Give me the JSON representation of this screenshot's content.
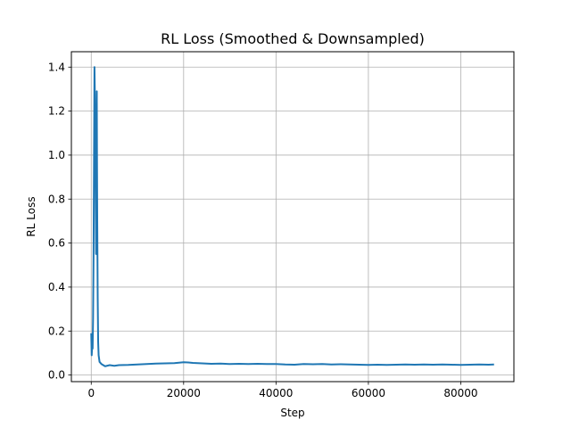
{
  "chart_data": {
    "type": "line",
    "title": "RL Loss (Smoothed & Downsampled)",
    "xlabel": "Step",
    "ylabel": "RL Loss",
    "xlim": [
      -4300,
      91500
    ],
    "ylim": [
      -0.03,
      1.47
    ],
    "xticks": [
      0,
      20000,
      40000,
      60000,
      80000
    ],
    "yticks": [
      0.0,
      0.2,
      0.4,
      0.6,
      0.8,
      1.0,
      1.2,
      1.4
    ],
    "xtick_labels": [
      "0",
      "20000",
      "40000",
      "60000",
      "80000"
    ],
    "ytick_labels": [
      "0.0",
      "0.2",
      "0.4",
      "0.6",
      "0.8",
      "1.0",
      "1.2",
      "1.4"
    ],
    "grid": true,
    "colors": {
      "line": "#1f77b4",
      "grid": "#b0b0b0",
      "axes": "#000000"
    },
    "series": [
      {
        "x": [
          0,
          100,
          200,
          300,
          400,
          500,
          600,
          700,
          800,
          900,
          1000,
          1050,
          1100,
          1150,
          1200,
          1250,
          1300,
          1400,
          1500,
          1600,
          1800,
          2200,
          3000,
          4000,
          5000,
          6000,
          8000,
          10000,
          12000,
          14000,
          16000,
          18000,
          19000,
          20000,
          21000,
          22000,
          23000,
          24000,
          26000,
          28000,
          30000,
          32000,
          34000,
          36000,
          38000,
          40000,
          42000,
          44000,
          46000,
          48000,
          50000,
          52000,
          54000,
          56000,
          58000,
          60000,
          62000,
          64000,
          66000,
          68000,
          70000,
          72000,
          74000,
          76000,
          78000,
          80000,
          82000,
          84000,
          86000,
          87200
        ],
        "y": [
          0.19,
          0.09,
          0.13,
          0.12,
          0.26,
          0.55,
          0.98,
          1.4,
          1.25,
          1.05,
          0.72,
          0.55,
          0.67,
          0.6,
          1.29,
          0.97,
          0.72,
          0.35,
          0.15,
          0.09,
          0.06,
          0.05,
          0.04,
          0.045,
          0.042,
          0.045,
          0.046,
          0.048,
          0.05,
          0.052,
          0.053,
          0.054,
          0.056,
          0.058,
          0.057,
          0.055,
          0.054,
          0.053,
          0.051,
          0.052,
          0.05,
          0.051,
          0.05,
          0.051,
          0.05,
          0.05,
          0.048,
          0.047,
          0.05,
          0.049,
          0.05,
          0.048,
          0.049,
          0.048,
          0.047,
          0.046,
          0.047,
          0.046,
          0.047,
          0.048,
          0.047,
          0.048,
          0.047,
          0.048,
          0.047,
          0.046,
          0.047,
          0.048,
          0.047,
          0.048
        ]
      }
    ]
  }
}
